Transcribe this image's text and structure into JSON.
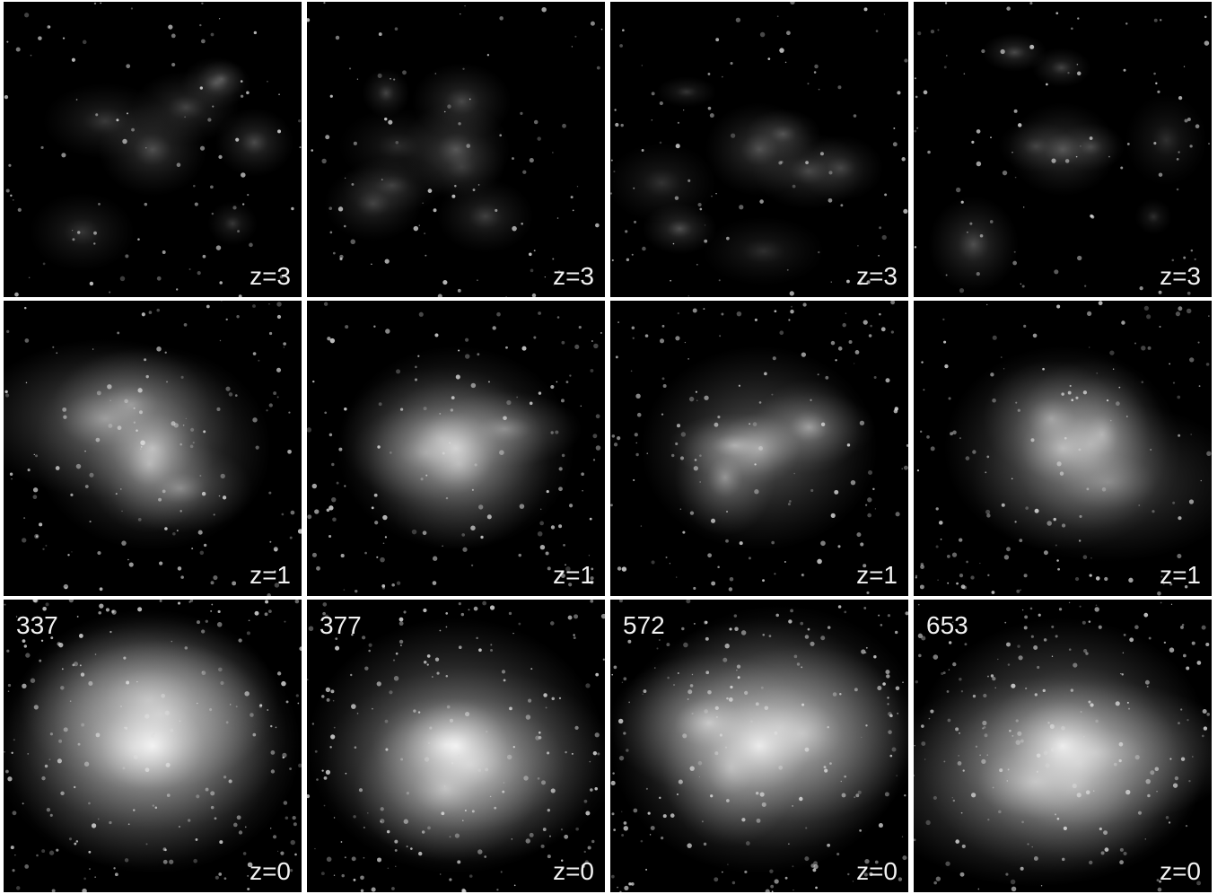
{
  "columns": [
    {
      "halo": "337",
      "redshifts": [
        "z=3",
        "z=1",
        "z=0"
      ]
    },
    {
      "halo": "377",
      "redshifts": [
        "z=3",
        "z=1",
        "z=0"
      ]
    },
    {
      "halo": "572",
      "redshifts": [
        "z=3",
        "z=1",
        "z=0"
      ]
    },
    {
      "halo": "653",
      "redshifts": [
        "z=3",
        "z=1",
        "z=0"
      ]
    }
  ]
}
